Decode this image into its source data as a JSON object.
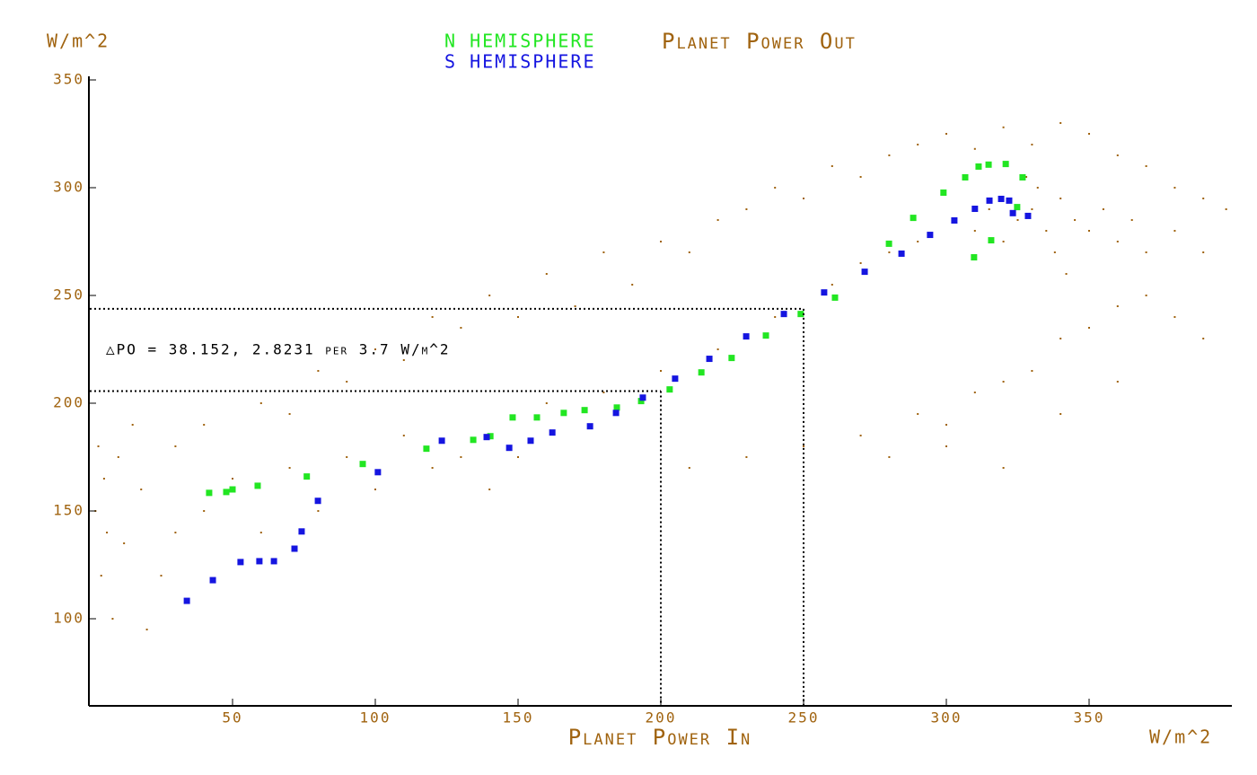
{
  "chart_data": {
    "type": "scatter",
    "y_unit": "W/m^2",
    "x_unit": "W/m^2",
    "x_label": "Planet Power In",
    "annotation": "△PO = 38.152, 2.8231 per 3.7 W/m^2",
    "xlim": [
      0,
      400
    ],
    "ylim": [
      60,
      350
    ],
    "xticks": [
      50,
      100,
      150,
      200,
      250,
      300,
      350
    ],
    "yticks": [
      100,
      150,
      200,
      250,
      300,
      350
    ],
    "reference_lines": [
      {
        "x": 200,
        "y": 205.6
      },
      {
        "x": 250,
        "y": 243.8
      }
    ],
    "series": [
      {
        "name": "Planet Power Out",
        "color": "#a0630f",
        "x": [
          2,
          3,
          4,
          5,
          6,
          8,
          10,
          12,
          15,
          18,
          20,
          25,
          30,
          40,
          50,
          60,
          70,
          80,
          90,
          100,
          110,
          120,
          130,
          140,
          150,
          30,
          40,
          60,
          70,
          80,
          90,
          100,
          110,
          120,
          130,
          140,
          150,
          160,
          170,
          180,
          190,
          200,
          210,
          220,
          230,
          240,
          250,
          260,
          270,
          280,
          290,
          300,
          310,
          320,
          330,
          340,
          350,
          360,
          370,
          380,
          390,
          398,
          160,
          180,
          200,
          220,
          240,
          260,
          270,
          280,
          290,
          310,
          315,
          320,
          325,
          330,
          335,
          340,
          345,
          350,
          355,
          360,
          365,
          370,
          380,
          390,
          332,
          338,
          328,
          342,
          210,
          230,
          250,
          270,
          290,
          300,
          310,
          320,
          330,
          340,
          350,
          360,
          370,
          380,
          390,
          300,
          320,
          340,
          360,
          280
        ],
        "values": [
          150,
          180,
          120,
          165,
          140,
          100,
          175,
          135,
          190,
          160,
          95,
          120,
          140,
          150,
          165,
          140,
          170,
          150,
          175,
          160,
          185,
          170,
          175,
          160,
          175,
          180,
          190,
          200,
          195,
          215,
          210,
          225,
          220,
          240,
          235,
          250,
          240,
          260,
          245,
          270,
          255,
          275,
          270,
          285,
          290,
          300,
          295,
          310,
          305,
          315,
          320,
          325,
          318,
          328,
          320,
          330,
          325,
          315,
          310,
          300,
          295,
          290,
          200,
          205,
          215,
          225,
          240,
          255,
          265,
          270,
          275,
          280,
          290,
          275,
          285,
          290,
          280,
          295,
          285,
          280,
          290,
          275,
          285,
          270,
          280,
          270,
          300,
          270,
          305,
          260,
          170,
          175,
          180,
          185,
          195,
          190,
          205,
          210,
          215,
          230,
          235,
          245,
          250,
          240,
          230,
          180,
          170,
          195,
          210,
          175
        ]
      },
      {
        "name": "N HEMISPHERE",
        "color": "#22e622",
        "x": [
          41.8,
          47.8,
          50,
          58.8,
          76,
          95.6,
          117.9,
          134.3,
          140.3,
          148.1,
          156.6,
          166,
          173.3,
          184.6,
          193.1,
          203.1,
          214.2,
          224.8,
          236.8,
          249,
          261,
          279.9,
          288.4,
          299,
          306.6,
          311.3,
          314.8,
          320.8,
          326.7,
          309.7,
          315.7,
          324.8
        ],
        "values": [
          158.4,
          158.8,
          160,
          161.7,
          166,
          171.8,
          178.9,
          183,
          184.7,
          193.4,
          193.4,
          195.5,
          196.8,
          198,
          201,
          206.4,
          214.3,
          221,
          231.4,
          241.4,
          249,
          274,
          286,
          297.7,
          304.8,
          309.8,
          310.7,
          311,
          304.8,
          267.7,
          275.6,
          291
        ]
      },
      {
        "name": "S HEMISPHERE",
        "color": "#1515e0",
        "x": [
          34,
          43.1,
          52.8,
          59.4,
          64.5,
          71.7,
          74.2,
          79.9,
          100.9,
          123.3,
          139,
          146.9,
          154.4,
          162,
          175.2,
          184.3,
          193.7,
          205,
          217,
          229.9,
          243.1,
          257.2,
          271.4,
          284.3,
          294.3,
          302.8,
          310,
          315.1,
          319.2,
          322,
          323.3,
          328.6
        ],
        "values": [
          108.3,
          117.9,
          126.3,
          126.7,
          126.7,
          132.5,
          140.5,
          154.7,
          168,
          182.6,
          184.3,
          179.3,
          182.6,
          186.4,
          189.3,
          195.5,
          202.6,
          211.4,
          220.6,
          231,
          241.4,
          251.4,
          261,
          269.4,
          278.1,
          284.8,
          290.2,
          294,
          294.8,
          294,
          288.2,
          286.9
        ]
      }
    ]
  }
}
